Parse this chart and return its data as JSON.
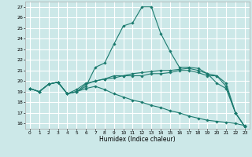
{
  "title": "",
  "xlabel": "Humidex (Indice chaleur)",
  "background_color": "#cce8e8",
  "grid_color": "#ffffff",
  "line_color": "#1a7a6e",
  "xlim": [
    -0.5,
    23.5
  ],
  "ylim": [
    15.5,
    27.5
  ],
  "xticks": [
    0,
    1,
    2,
    3,
    4,
    5,
    6,
    7,
    8,
    9,
    10,
    11,
    12,
    13,
    14,
    15,
    16,
    17,
    18,
    19,
    20,
    21,
    22,
    23
  ],
  "yticks": [
    16,
    17,
    18,
    19,
    20,
    21,
    22,
    23,
    24,
    25,
    26,
    27
  ],
  "series": [
    {
      "x": [
        0,
        1,
        2,
        3,
        4,
        5,
        6,
        7,
        8,
        9,
        10,
        11,
        12,
        13,
        14,
        15,
        16,
        17,
        18,
        19,
        20,
        21,
        22,
        23
      ],
      "y": [
        19.3,
        19.0,
        19.7,
        19.9,
        18.8,
        19.0,
        19.5,
        21.3,
        21.7,
        23.5,
        25.2,
        25.5,
        27.0,
        27.0,
        24.5,
        22.8,
        21.3,
        21.3,
        21.2,
        20.7,
        19.8,
        19.3,
        17.0,
        15.7
      ]
    },
    {
      "x": [
        0,
        1,
        2,
        3,
        4,
        5,
        6,
        7,
        8,
        9,
        10,
        11,
        12,
        13,
        14,
        15,
        16,
        17,
        18,
        19,
        20,
        21,
        22,
        23
      ],
      "y": [
        19.3,
        19.0,
        19.7,
        19.9,
        18.8,
        19.0,
        19.7,
        20.0,
        20.2,
        20.3,
        20.5,
        20.7,
        20.8,
        20.9,
        21.0,
        21.0,
        21.1,
        21.2,
        21.0,
        20.7,
        20.5,
        19.8,
        17.0,
        15.7
      ]
    },
    {
      "x": [
        0,
        1,
        2,
        3,
        4,
        5,
        6,
        7,
        8,
        9,
        10,
        11,
        12,
        13,
        14,
        15,
        16,
        17,
        18,
        19,
        20,
        21,
        22,
        23
      ],
      "y": [
        19.3,
        19.0,
        19.7,
        19.9,
        18.8,
        19.2,
        19.8,
        20.0,
        20.2,
        20.5,
        20.5,
        20.5,
        20.5,
        20.7,
        20.7,
        20.8,
        21.0,
        21.0,
        20.8,
        20.5,
        20.5,
        19.5,
        17.0,
        15.7
      ]
    },
    {
      "x": [
        0,
        1,
        2,
        3,
        4,
        5,
        6,
        7,
        8,
        9,
        10,
        11,
        12,
        13,
        14,
        15,
        16,
        17,
        18,
        19,
        20,
        21,
        22,
        23
      ],
      "y": [
        19.3,
        19.0,
        19.7,
        19.9,
        18.8,
        19.0,
        19.3,
        19.5,
        19.2,
        18.8,
        18.5,
        18.2,
        18.0,
        17.7,
        17.5,
        17.2,
        17.0,
        16.7,
        16.5,
        16.3,
        16.2,
        16.1,
        16.0,
        15.8
      ]
    }
  ]
}
